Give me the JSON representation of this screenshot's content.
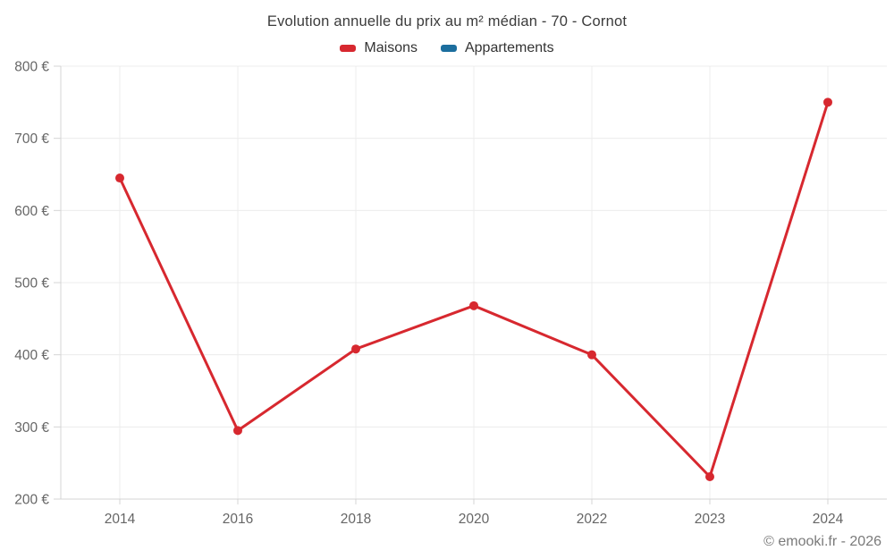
{
  "title": "Evolution annuelle du prix au m² médian - 70 - Cornot",
  "legend": {
    "items": [
      {
        "label": "Maisons",
        "color": "#d7282f"
      },
      {
        "label": "Appartements",
        "color": "#1c6e9e"
      }
    ]
  },
  "footer": "© emooki.fr - 2026",
  "chart_data": {
    "type": "line",
    "title": "Evolution annuelle du prix au m² médian - 70 - Cornot",
    "categories": [
      "2014",
      "2016",
      "2018",
      "2020",
      "2022",
      "2023",
      "2024"
    ],
    "series": [
      {
        "name": "Maisons",
        "color": "#d7282f",
        "values": [
          645,
          295,
          408,
          468,
          400,
          231,
          750
        ]
      },
      {
        "name": "Appartements",
        "color": "#1c6e9e",
        "values": []
      }
    ],
    "xlabel": "",
    "ylabel": "",
    "ylim": [
      200,
      800
    ],
    "ytick_step": 100,
    "ytick_suffix": " €",
    "grid": true,
    "legend_position": "top",
    "colors": {
      "grid": "#ececec",
      "axis": "#d4d4d4",
      "tick_text": "#666666",
      "title_text": "#3b3b3b",
      "footer_text": "#7a7a7a"
    }
  }
}
